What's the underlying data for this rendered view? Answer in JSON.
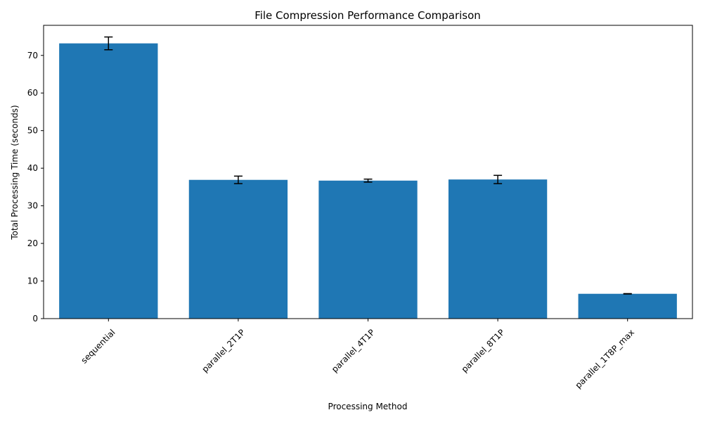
{
  "chart_data": {
    "type": "bar",
    "title": "File Compression Performance Comparison",
    "xlabel": "Processing Method",
    "ylabel": "Total Processing Time (seconds)",
    "categories": [
      "sequential",
      "parallel_2T1P",
      "parallel_4T1P",
      "parallel_8T1P",
      "parallel_1T8P_max"
    ],
    "values": [
      73.2,
      36.9,
      36.7,
      37.0,
      6.6
    ],
    "errors": [
      1.7,
      1.0,
      0.4,
      1.1,
      0.05
    ],
    "ylim": [
      0,
      78
    ],
    "yticks": [
      0,
      10,
      20,
      30,
      40,
      50,
      60,
      70
    ],
    "bar_color": "#1f77b4",
    "error_color": "#000000",
    "grid": false,
    "legend": "none",
    "xtick_rotation": 45
  }
}
